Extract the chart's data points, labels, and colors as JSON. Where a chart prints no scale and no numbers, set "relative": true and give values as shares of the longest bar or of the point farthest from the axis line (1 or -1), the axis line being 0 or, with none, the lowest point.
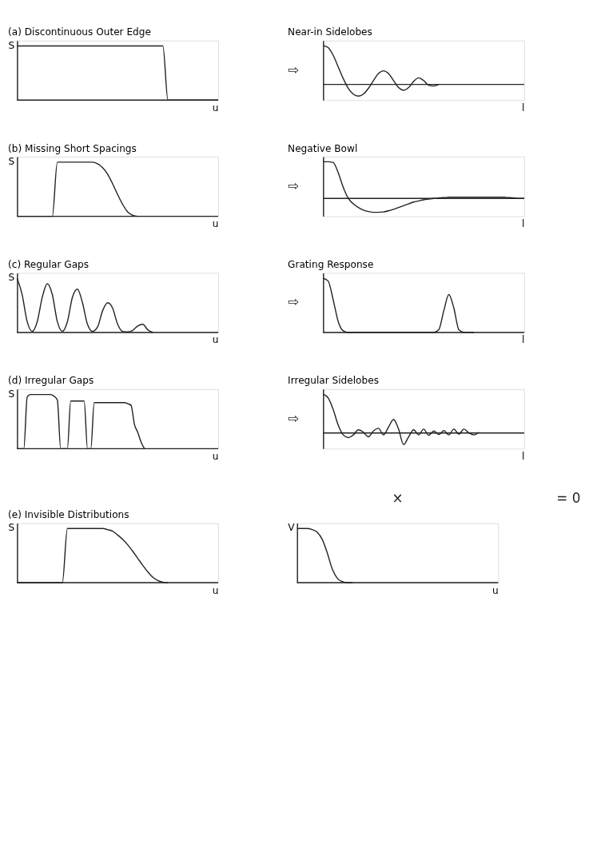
{
  "chart_data": [
    {
      "type": "line",
      "relative": true,
      "title": "(a)  Discontinuous Outer Edge",
      "ylabel": "S",
      "xlabel": "u",
      "categories": [
        null,
        null,
        null,
        null,
        null,
        null,
        null,
        null,
        null,
        null,
        null,
        null,
        null,
        null,
        null,
        null,
        null,
        null,
        null,
        null,
        null,
        null,
        null,
        null,
        null,
        null,
        null,
        null,
        null,
        null,
        null,
        null,
        null,
        null,
        null,
        null,
        null,
        null,
        null,
        null,
        null
      ],
      "series": [
        {
          "color": "#222222",
          "values": [
            1,
            1,
            1,
            1,
            1,
            1,
            1,
            1,
            1,
            1,
            1,
            1,
            1,
            1,
            1,
            1,
            1,
            1,
            1,
            1,
            1,
            1,
            1,
            1,
            1,
            1,
            1,
            1,
            1,
            1,
            0,
            0,
            0,
            0,
            0,
            0,
            0,
            0,
            0,
            0,
            0
          ]
        }
      ]
    },
    {
      "type": "line",
      "relative": true,
      "title": "Near-in Sidelobes",
      "xlabel": "l",
      "annotations": [
        "⇨"
      ],
      "categories": [
        null,
        null,
        null,
        null,
        null,
        null,
        null,
        null,
        null,
        null,
        null,
        null,
        null,
        null,
        null,
        null,
        null,
        null,
        null,
        null,
        null,
        null,
        null,
        null,
        null,
        null,
        null,
        null,
        null,
        null,
        null,
        null,
        null,
        null,
        null,
        null,
        null,
        null,
        null,
        null,
        null
      ],
      "series": [
        {
          "color": "#222222",
          "values": [
            1,
            0.95,
            0.75,
            0.45,
            0.15,
            -0.1,
            -0.25,
            -0.3,
            -0.25,
            -0.1,
            0.1,
            0.28,
            0.35,
            0.28,
            0.1,
            -0.08,
            -0.15,
            -0.08,
            0.08,
            0.17,
            0.1,
            -0.02,
            -0.04,
            0,
            null,
            null,
            null,
            null,
            null,
            null,
            null,
            null,
            null,
            null,
            null,
            null,
            null,
            null,
            null,
            null,
            null
          ]
        }
      ]
    },
    {
      "type": "line",
      "relative": true,
      "title": "(b)  Missing Short Spacings",
      "ylabel": "S",
      "xlabel": "u",
      "categories": [
        null,
        null,
        null,
        null,
        null,
        null,
        null,
        null,
        null,
        null,
        null,
        null,
        null,
        null,
        null,
        null,
        null,
        null,
        null,
        null,
        null,
        null,
        null,
        null,
        null,
        null,
        null,
        null,
        null,
        null,
        null,
        null,
        null,
        null,
        null,
        null,
        null,
        null,
        null,
        null,
        null
      ],
      "series": [
        {
          "color": "#222222",
          "values": [
            0,
            0,
            0,
            0,
            0,
            0,
            0,
            0,
            1,
            1,
            1,
            1,
            1,
            1,
            1,
            1,
            0.97,
            0.9,
            0.78,
            0.6,
            0.4,
            0.22,
            0.08,
            0.02,
            0,
            null,
            null,
            null,
            null,
            null,
            null,
            null,
            null,
            null,
            null,
            null,
            null,
            null,
            null,
            null,
            null
          ]
        }
      ]
    },
    {
      "type": "line",
      "relative": true,
      "title": "Negative Bowl",
      "xlabel": "l",
      "annotations": [
        "⇨"
      ],
      "categories": [
        null,
        null,
        null,
        null,
        null,
        null,
        null,
        null,
        null,
        null,
        null,
        null,
        null,
        null,
        null,
        null,
        null,
        null,
        null,
        null,
        null,
        null,
        null,
        null,
        null,
        null,
        null,
        null,
        null,
        null,
        null,
        null,
        null,
        null,
        null,
        null,
        null,
        null,
        null,
        null,
        null
      ],
      "series": [
        {
          "color": "#222222",
          "values": [
            1,
            1,
            0.98,
            0.7,
            0.3,
            0,
            -0.15,
            -0.25,
            -0.32,
            -0.36,
            -0.38,
            -0.38,
            -0.37,
            -0.34,
            -0.3,
            -0.25,
            -0.2,
            -0.15,
            -0.1,
            -0.07,
            -0.04,
            -0.02,
            0,
            0.01,
            0.02,
            0.03,
            0.03,
            0.03,
            0.03,
            0.03,
            0.03,
            0.03,
            0.03,
            0.03,
            0.03,
            0.03,
            0.03,
            0.02,
            0.01,
            0,
            0
          ]
        }
      ]
    },
    {
      "type": "line",
      "relative": true,
      "title": "(c)  Regular Gaps",
      "ylabel": "S",
      "xlabel": "u",
      "categories": [
        null,
        null,
        null,
        null,
        null,
        null,
        null,
        null,
        null,
        null,
        null,
        null,
        null,
        null,
        null,
        null,
        null,
        null,
        null,
        null,
        null,
        null,
        null,
        null,
        null,
        null,
        null,
        null,
        null,
        null,
        null,
        null,
        null,
        null,
        null,
        null,
        null,
        null,
        null,
        null,
        null
      ],
      "series": [
        {
          "color": "#222222",
          "values": [
            1,
            0.7,
            0.2,
            0.02,
            0.2,
            0.65,
            0.9,
            0.7,
            0.2,
            0.02,
            0.2,
            0.65,
            0.8,
            0.55,
            0.15,
            0.02,
            0.1,
            0.4,
            0.55,
            0.45,
            0.15,
            0.02,
            0.01,
            0.04,
            0.12,
            0.15,
            0.05,
            0,
            null,
            null,
            null,
            null,
            null,
            null,
            null,
            null,
            null,
            null,
            null,
            null,
            null
          ]
        }
      ]
    },
    {
      "type": "line",
      "relative": true,
      "title": "Grating Response",
      "xlabel": "l",
      "annotations": [
        "⇨"
      ],
      "categories": [
        null,
        null,
        null,
        null,
        null,
        null,
        null,
        null,
        null,
        null,
        null,
        null,
        null,
        null,
        null,
        null,
        null,
        null,
        null,
        null,
        null,
        null,
        null,
        null,
        null,
        null,
        null,
        null,
        null,
        null,
        null,
        null,
        null,
        null,
        null,
        null,
        null,
        null,
        null,
        null,
        null
      ],
      "series": [
        {
          "color": "#222222",
          "values": [
            1,
            0.95,
            0.6,
            0.2,
            0.03,
            0,
            0,
            0,
            0,
            0,
            0,
            0,
            0,
            0,
            0,
            0,
            0,
            0,
            0,
            0,
            0,
            0,
            0,
            0.05,
            0.4,
            0.7,
            0.45,
            0.05,
            0,
            0,
            0,
            null,
            null,
            null,
            null,
            null,
            null,
            null,
            null,
            null,
            null
          ]
        }
      ]
    },
    {
      "type": "line",
      "relative": true,
      "title": "(d)  Irregular Gaps",
      "ylabel": "S",
      "xlabel": "u",
      "categories": [
        null,
        null,
        null,
        null,
        null,
        null,
        null,
        null,
        null,
        null,
        null,
        null,
        null,
        null,
        null,
        null,
        null,
        null,
        null,
        null,
        null,
        null,
        null,
        null,
        null,
        null,
        null,
        null,
        null,
        null,
        null,
        null,
        null,
        null,
        null,
        null,
        null,
        null,
        null,
        null,
        null,
        null,
        null,
        null,
        null,
        null,
        null,
        null,
        null,
        null,
        null,
        null,
        null,
        null,
        null,
        null,
        null,
        null,
        null,
        null,
        null
      ],
      "series": [
        {
          "color": "#222222",
          "values": [
            0,
            0,
            0,
            0.95,
            1,
            1,
            1,
            1,
            1,
            1,
            1,
            0.97,
            0.9,
            0,
            0,
            0,
            0.88,
            0.88,
            0.88,
            0.88,
            0.88,
            0,
            0,
            0.85,
            0.85,
            0.85,
            0.85,
            0.85,
            0.85,
            0.85,
            0.85,
            0.85,
            0.85,
            0.83,
            0.8,
            0.45,
            0.3,
            0.12,
            0,
            null,
            null,
            null,
            null,
            null,
            null,
            null,
            null,
            null,
            null,
            null,
            null,
            null,
            null,
            null,
            null,
            null,
            null,
            null,
            null,
            null,
            null
          ]
        }
      ]
    },
    {
      "type": "line",
      "relative": true,
      "title": "Irregular Sidelobes",
      "xlabel": "l",
      "annotations": [
        "⇨"
      ],
      "categories": [
        null,
        null,
        null,
        null,
        null,
        null,
        null,
        null,
        null,
        null,
        null,
        null,
        null,
        null,
        null,
        null,
        null,
        null,
        null,
        null,
        null,
        null,
        null,
        null,
        null,
        null,
        null,
        null,
        null,
        null,
        null,
        null,
        null,
        null,
        null,
        null,
        null,
        null,
        null,
        null,
        null
      ],
      "series": [
        {
          "color": "#222222",
          "values": [
            1,
            0.9,
            0.6,
            0.2,
            -0.05,
            -0.12,
            -0.05,
            0.08,
            0.02,
            -0.1,
            0.05,
            0.12,
            -0.05,
            0.15,
            0.35,
            0.1,
            -0.3,
            -0.1,
            0.08,
            -0.05,
            0.1,
            -0.06,
            0.05,
            -0.04,
            0.06,
            -0.05,
            0.1,
            -0.03,
            0.1,
            0,
            -0.05,
            0.02,
            null,
            null,
            null,
            null,
            null,
            null,
            null,
            null,
            null
          ]
        }
      ]
    },
    {
      "type": "line",
      "relative": true,
      "title": "(e)  Invisible Distributions",
      "ylabel": "S",
      "xlabel": "u",
      "categories": [
        null,
        null,
        null,
        null,
        null,
        null,
        null,
        null,
        null,
        null,
        null,
        null,
        null,
        null,
        null,
        null,
        null,
        null,
        null,
        null,
        null,
        null,
        null,
        null,
        null,
        null,
        null,
        null,
        null,
        null,
        null,
        null,
        null,
        null,
        null,
        null,
        null,
        null,
        null,
        null,
        null
      ],
      "series": [
        {
          "color": "#222222",
          "values": [
            0,
            0,
            0,
            0,
            0,
            0,
            0,
            0,
            0,
            0,
            1,
            1,
            1,
            1,
            1,
            1,
            1,
            1,
            0.98,
            0.95,
            0.88,
            0.8,
            0.7,
            0.58,
            0.45,
            0.32,
            0.2,
            0.1,
            0.04,
            0.01,
            0,
            null,
            null,
            null,
            null,
            null,
            null,
            null,
            null,
            null,
            null
          ]
        }
      ]
    },
    {
      "type": "line",
      "relative": true,
      "ylabel": "V",
      "xlabel": "u",
      "annotations": [
        "×",
        "= 0"
      ],
      "categories": [
        null,
        null,
        null,
        null,
        null,
        null,
        null,
        null,
        null,
        null,
        null,
        null,
        null,
        null,
        null,
        null,
        null,
        null,
        null,
        null,
        null,
        null,
        null,
        null,
        null,
        null,
        null,
        null,
        null,
        null,
        null,
        null,
        null,
        null,
        null,
        null,
        null,
        null,
        null,
        null,
        null
      ],
      "series": [
        {
          "color": "#222222",
          "values": [
            1,
            1,
            1,
            0.98,
            0.93,
            0.8,
            0.55,
            0.25,
            0.08,
            0.02,
            0,
            0,
            null,
            null,
            null,
            null,
            null,
            null,
            null,
            null,
            null,
            null,
            null,
            null,
            null,
            null,
            null,
            null,
            null,
            null,
            null,
            null,
            null,
            null,
            null,
            null,
            null,
            null,
            null,
            null,
            null
          ]
        }
      ]
    }
  ]
}
